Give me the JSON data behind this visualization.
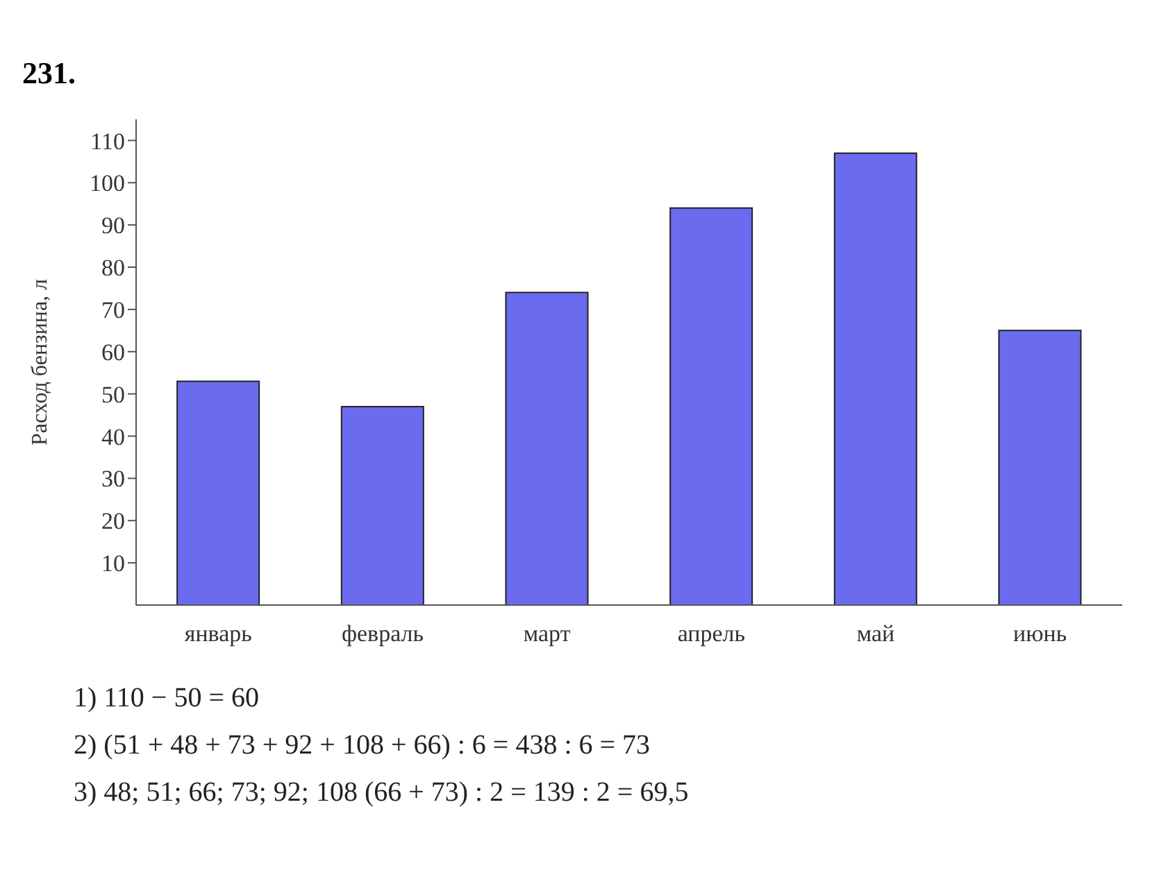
{
  "chart_data": {
    "type": "bar",
    "title": "231.",
    "ylabel": "Расход бензина, л",
    "categories": [
      "январь",
      "февраль",
      "март",
      "апрель",
      "май",
      "июнь"
    ],
    "values": [
      53,
      47,
      74,
      94,
      107,
      65
    ],
    "color": "#6b6bf0",
    "ylim": [
      0,
      115
    ],
    "yticks": [
      10,
      20,
      30,
      40,
      50,
      60,
      70,
      80,
      90,
      100,
      110
    ],
    "grid": false,
    "legend": false,
    "annotations": [
      "1) 110 − 50 = 60",
      "2) (51 + 48 + 73 + 92 + 108 + 66) : 6 = 438 : 6 = 73",
      "3) 48; 51; 66; 73; 92; 108 (66 + 73) : 2 = 139 : 2 = 69,5"
    ]
  }
}
